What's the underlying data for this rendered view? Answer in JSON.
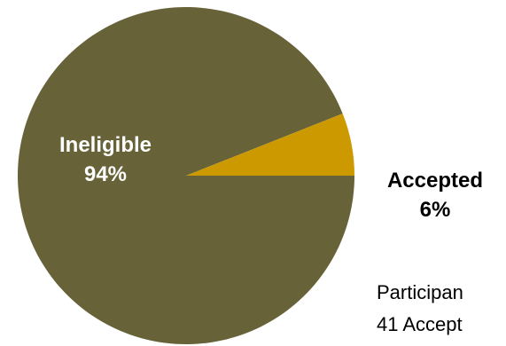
{
  "chart_data": {
    "type": "pie",
    "title": "",
    "slices": [
      {
        "label": "Ineligible",
        "percent_label": "94%",
        "value": 94,
        "color": "#676238"
      },
      {
        "label": "Accepted",
        "percent_label": "6%",
        "value": 6,
        "color": "#cc9900"
      }
    ],
    "notes": [
      "Participan",
      "41 Accept"
    ]
  }
}
